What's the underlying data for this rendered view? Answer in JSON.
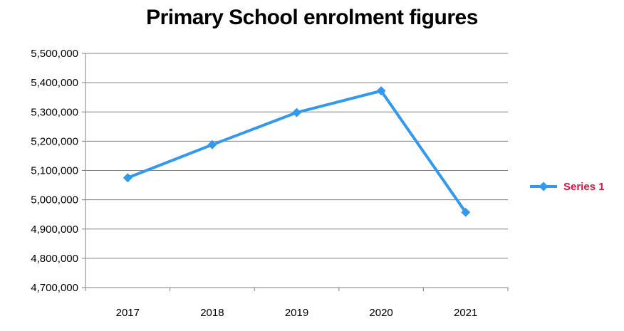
{
  "chart_data": {
    "type": "line",
    "title": "Primary School enrolment figures",
    "xlabel": "",
    "ylabel": "",
    "categories": [
      "2017",
      "2018",
      "2019",
      "2020",
      "2021"
    ],
    "series": [
      {
        "name": "Series 1",
        "values": [
          5075000,
          5188000,
          5298000,
          5372000,
          4957000
        ],
        "color": "#3399ee"
      }
    ],
    "ylim": [
      4700000,
      5500000
    ],
    "yticks": [
      4700000,
      4800000,
      4900000,
      5000000,
      5100000,
      5200000,
      5300000,
      5400000,
      5500000
    ],
    "ytick_labels": [
      "4,700,000",
      "4,800,000",
      "4,900,000",
      "5,000,000",
      "5,100,000",
      "5,200,000",
      "5,300,000",
      "5,400,000",
      "5,500,000"
    ],
    "grid": true,
    "legend_position": "right",
    "legend_text_color": "#dc143c",
    "gridline_color": "#808080"
  }
}
